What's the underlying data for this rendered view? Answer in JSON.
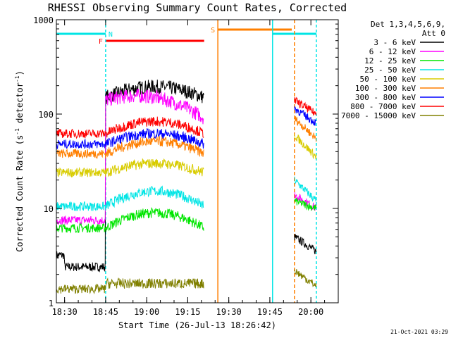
{
  "chart_data": {
    "type": "line",
    "title": "RHESSI Observing Summary Count Rates, Corrected",
    "xlabel": "Start Time (26-Jul-13 18:26:42)",
    "ylabel_main": "Corrected Count Rate (s",
    "ylabel_sup1": "-1",
    "ylabel_mid": " detector",
    "ylabel_sup2": "-1",
    "ylabel_end": ")",
    "y_scale": "log",
    "ylim": [
      1,
      1000
    ],
    "xlim_minutes": [
      18.45,
      20.17
    ],
    "x_ticks": [
      "18:30",
      "18:45",
      "19:00",
      "19:15",
      "19:30",
      "19:45",
      "20:00"
    ],
    "y_ticks": [
      "1",
      "10",
      "100",
      "1000"
    ],
    "legend_header": [
      "Det 1,3,4,5,6,9,",
      "Att 0"
    ],
    "legend_position": "right",
    "footer_stamp": "21-Oct-2021 03:29",
    "series": [
      {
        "name": "3 - 6 keV",
        "color": "#000000"
      },
      {
        "name": "6 - 12 keV",
        "color": "#ff00ff"
      },
      {
        "name": "12 - 25 keV",
        "color": "#00e600"
      },
      {
        "name": "25 - 50 keV",
        "color": "#00e5e5"
      },
      {
        "name": "50 - 100 keV",
        "color": "#d8cc00"
      },
      {
        "name": "100 - 300 keV",
        "color": "#ff7f00"
      },
      {
        "name": "300 - 800 keV",
        "color": "#0000ff"
      },
      {
        "name": "800 - 7000 keV",
        "color": "#ff0000"
      },
      {
        "name": "7000 - 15000 keV",
        "color": "#808000"
      }
    ],
    "flags": [
      {
        "label": "N",
        "color": "#00e5e5",
        "start": "18:26",
        "end": "18:45"
      },
      {
        "label": "F",
        "color": "#ff0000",
        "start": "18:45",
        "end": "19:21"
      },
      {
        "label": "S",
        "color": "#ff7f00",
        "start": "19:26",
        "end": "19:53"
      },
      {
        "label": "",
        "color": "#00e5e5",
        "start": "19:46",
        "end": "20:02"
      }
    ]
  }
}
